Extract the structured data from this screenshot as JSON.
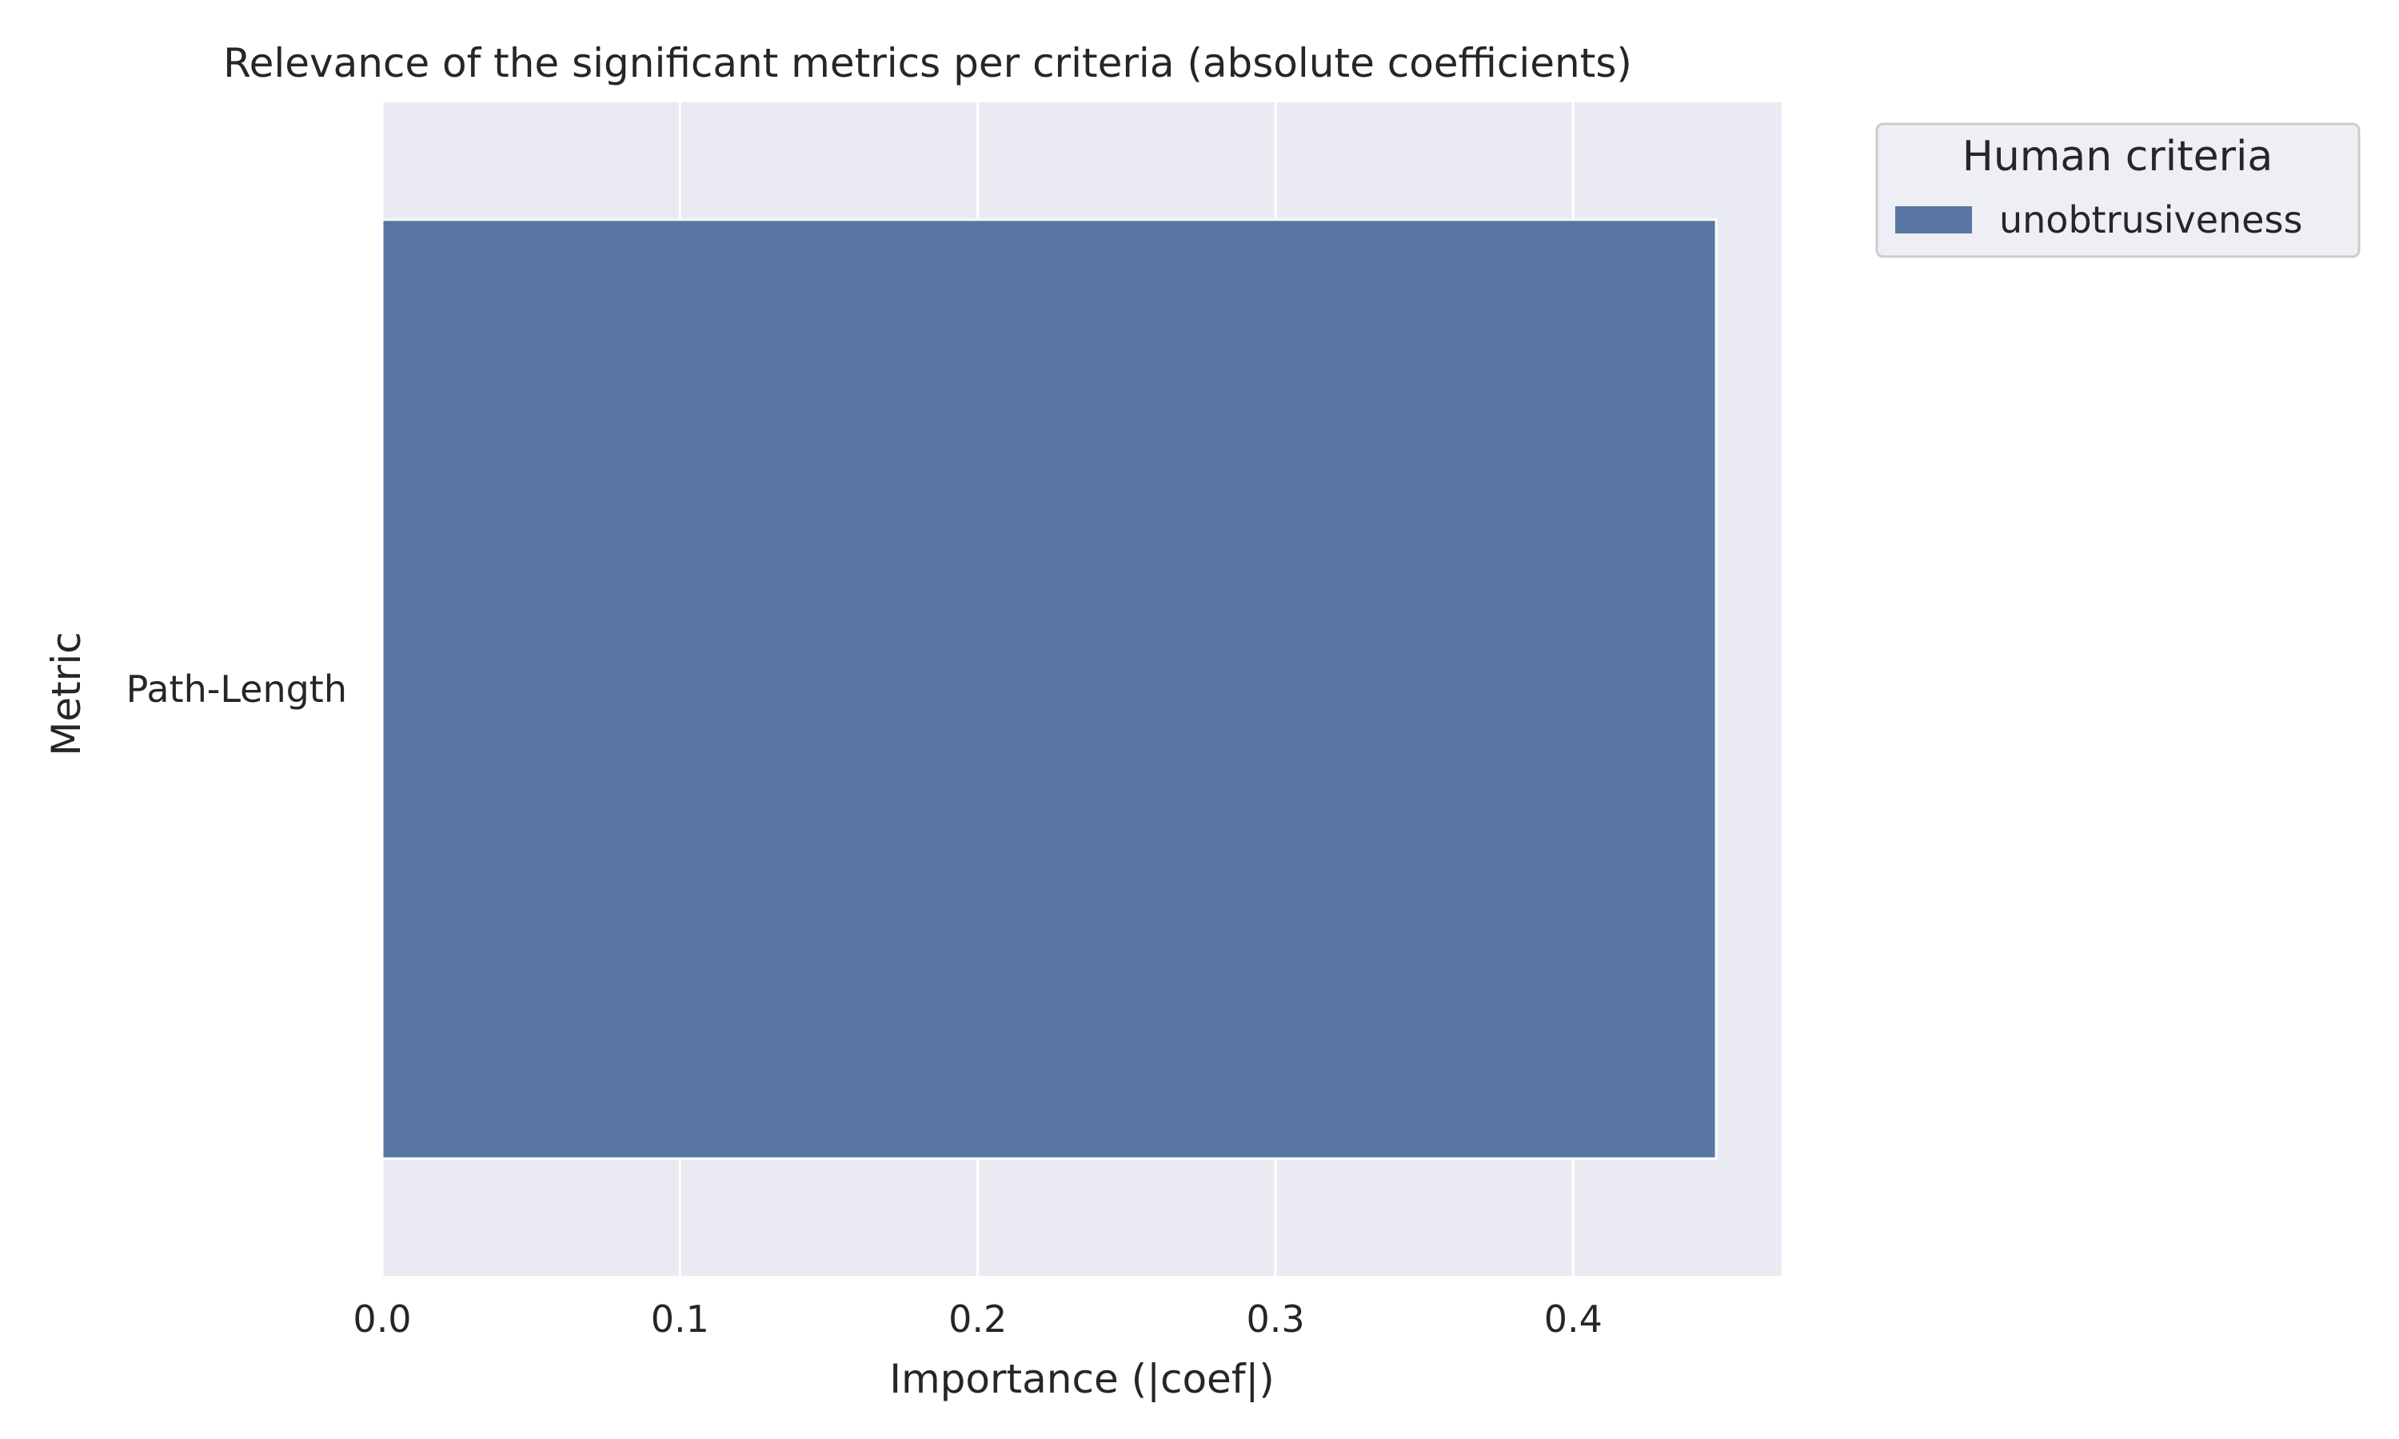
{
  "chart_data": {
    "type": "bar",
    "orientation": "horizontal",
    "title": "Relevance of the significant metrics per criteria (absolute coefficients)",
    "xlabel": "Importance (|coef|)",
    "ylabel": "Metric",
    "categories": [
      "Path-Length"
    ],
    "series": [
      {
        "name": "unobtrusiveness",
        "values": [
          0.448
        ],
        "color": "#5875a4"
      }
    ],
    "xlim": [
      0,
      0.47
    ],
    "xticks": [
      0.0,
      0.1,
      0.2,
      0.3,
      0.4
    ],
    "xtick_labels": [
      "0.0",
      "0.1",
      "0.2",
      "0.3",
      "0.4"
    ],
    "grid": true,
    "legend": {
      "title": "Human criteria",
      "placement": "outside-top-right"
    },
    "colors": {
      "plot_background": "#eaeaf2",
      "gridline": "#ffffff",
      "text": "#262626"
    }
  }
}
